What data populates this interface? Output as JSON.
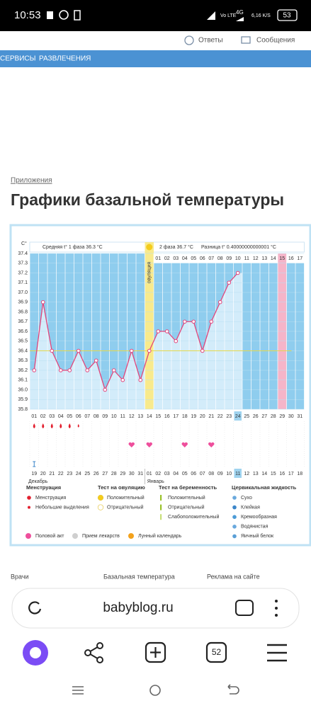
{
  "status_bar": {
    "time": "10:53",
    "network": "Vo LTE",
    "signal": "4G",
    "speed": "6,16 K/S",
    "battery": "53"
  },
  "header": {
    "links": [
      "Ответы",
      "Сообщения"
    ]
  },
  "nav": [
    "СЕРВИСЫ",
    "РАЗВЛЕЧЕНИЯ"
  ],
  "breadcrumb": "Приложения",
  "title": "Графики базальной температуры",
  "chart_data": {
    "type": "line",
    "ylabel": "C°",
    "phase1_label": "Средняя t° 1 фаза 36.3 °C",
    "ovulation_label": "овуляция",
    "phase2_label": "2 фаза 36.7 °C",
    "difference_label": "Разница t° 0.40000000000001 °C",
    "categories": [
      "01",
      "02",
      "03",
      "04",
      "05",
      "06",
      "07",
      "08",
      "09",
      "10",
      "11",
      "12",
      "13",
      "14",
      "15",
      "16",
      "17",
      "18",
      "19",
      "20",
      "21",
      "22",
      "23",
      "24",
      "25",
      "26",
      "27",
      "28",
      "29",
      "30",
      "31"
    ],
    "phase2_days": [
      "01",
      "02",
      "03",
      "04",
      "05",
      "06",
      "07",
      "08",
      "09",
      "10",
      "11",
      "12",
      "13",
      "14",
      "15",
      "16",
      "17"
    ],
    "dates": [
      "19",
      "20",
      "21",
      "22",
      "23",
      "24",
      "25",
      "26",
      "27",
      "28",
      "29",
      "30",
      "31",
      "01",
      "02",
      "03",
      "04",
      "05",
      "06",
      "07",
      "08",
      "09",
      "10",
      "11",
      "12",
      "13",
      "14",
      "15",
      "16",
      "17",
      "18"
    ],
    "months": [
      "Декабрь",
      "Январь"
    ],
    "values": [
      36.2,
      36.9,
      36.4,
      36.2,
      36.2,
      36.4,
      36.2,
      36.3,
      36.0,
      36.2,
      36.1,
      36.4,
      36.1,
      36.4,
      36.6,
      36.6,
      36.5,
      36.7,
      36.7,
      36.4,
      36.7,
      36.9,
      37.1,
      37.2,
      null,
      null,
      null,
      null,
      null,
      null,
      null
    ],
    "coverline": 36.4,
    "color": "#e2467c",
    "ylim": [
      35.8,
      37.4
    ],
    "yticks": [
      35.8,
      35.9,
      {
        "value": 36,
        "label": "36.0"
      },
      36.1,
      36.2,
      36.3,
      36.4,
      36.5,
      36.6,
      36.7,
      36.8,
      36.9,
      {
        "value": 37,
        "label": "37.0"
      },
      37.1,
      37.2,
      37.3,
      37.4
    ],
    "grid": true
  },
  "legend": {
    "groups": [
      {
        "title": "Менструация",
        "items": [
          "Менструация",
          "Небольшие выделения"
        ]
      },
      {
        "title": "Тест на овуляцию",
        "items": [
          "Положительный",
          "Отрицательный"
        ]
      },
      {
        "title": "Тест на беременность",
        "items": [
          "Положительный",
          "Отрицательный",
          "Слабоположительный"
        ]
      },
      {
        "title": "Цервикальная жидкость",
        "items": [
          "Сухо",
          "Клейкая",
          "Кремообразная",
          "Водянистая",
          "Яичный белок"
        ]
      }
    ],
    "extra": [
      "Половой акт",
      "Прием лекарств",
      "Лунный календарь"
    ]
  },
  "footer_links": [
    "Врачи",
    "Базальная температура",
    "Реклама на сайте"
  ],
  "browser": {
    "url": "babyblog.ru",
    "tabs": "52"
  }
}
